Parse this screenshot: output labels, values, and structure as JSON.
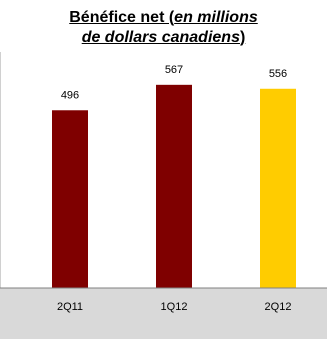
{
  "title": {
    "prefix": "Bénéfice net (",
    "italic_line1": "en millions",
    "italic_line2": "de dollars canadiens",
    "suffix": ")"
  },
  "colors": {
    "bar_dark": "#7f0000",
    "bar_highlight": "#ffcc00",
    "axis_band": "#d9d9d9",
    "axis_line": "#808080",
    "text": "#000000"
  },
  "chart_data": {
    "type": "bar",
    "categories": [
      "2Q11",
      "1Q12",
      "2Q12"
    ],
    "values": [
      496,
      567,
      556
    ],
    "data_labels": [
      "496",
      "567",
      "556"
    ],
    "highlight_index": 2,
    "ylim": [
      0,
      600
    ],
    "grid": false,
    "legend": "none",
    "xlabel": "",
    "ylabel": ""
  }
}
